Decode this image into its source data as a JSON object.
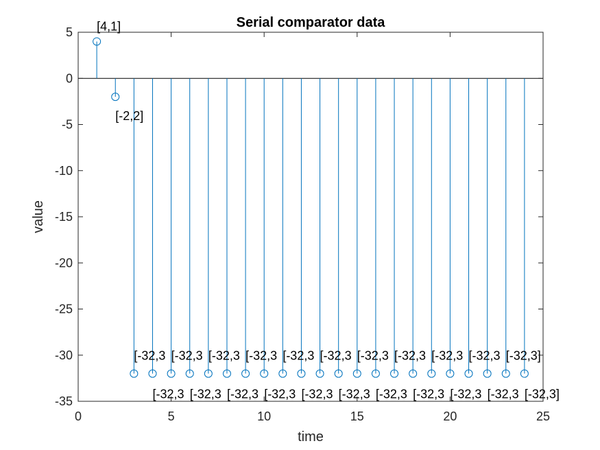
{
  "chart_data": {
    "type": "stem",
    "title": "Serial comparator data",
    "xlabel": "time",
    "ylabel": "value",
    "xlim": [
      0,
      25
    ],
    "ylim": [
      -35,
      5
    ],
    "xticks": [
      0,
      5,
      10,
      15,
      20,
      25
    ],
    "yticks": [
      5,
      0,
      -5,
      -10,
      -15,
      -20,
      -25,
      -30,
      -35
    ],
    "grid": false,
    "color": "#0072BD",
    "points": [
      {
        "x": 1,
        "y": 4,
        "label": "[4,1]"
      },
      {
        "x": 2,
        "y": -2,
        "label": "[-2,2]"
      },
      {
        "x": 3,
        "y": -32,
        "label": "[-32,3"
      },
      {
        "x": 4,
        "y": -32,
        "label": "[-32,3"
      },
      {
        "x": 5,
        "y": -32,
        "label": "[-32,3"
      },
      {
        "x": 6,
        "y": -32,
        "label": "[-32,3"
      },
      {
        "x": 7,
        "y": -32,
        "label": "[-32,3"
      },
      {
        "x": 8,
        "y": -32,
        "label": "[-32,3"
      },
      {
        "x": 9,
        "y": -32,
        "label": "[-32,3"
      },
      {
        "x": 10,
        "y": -32,
        "label": "[-32,3"
      },
      {
        "x": 11,
        "y": -32,
        "label": "[-32,3"
      },
      {
        "x": 12,
        "y": -32,
        "label": "[-32,3"
      },
      {
        "x": 13,
        "y": -32,
        "label": "[-32,3"
      },
      {
        "x": 14,
        "y": -32,
        "label": "[-32,3"
      },
      {
        "x": 15,
        "y": -32,
        "label": "[-32,3"
      },
      {
        "x": 16,
        "y": -32,
        "label": "[-32,3"
      },
      {
        "x": 17,
        "y": -32,
        "label": "[-32,3"
      },
      {
        "x": 18,
        "y": -32,
        "label": "[-32,3"
      },
      {
        "x": 19,
        "y": -32,
        "label": "[-32,3"
      },
      {
        "x": 20,
        "y": -32,
        "label": "[-32,3"
      },
      {
        "x": 21,
        "y": -32,
        "label": "[-32,3"
      },
      {
        "x": 22,
        "y": -32,
        "label": "[-32,3"
      },
      {
        "x": 23,
        "y": -32,
        "label": "[-32,3]"
      },
      {
        "x": 24,
        "y": -32,
        "label": "[-32,3]"
      }
    ]
  }
}
